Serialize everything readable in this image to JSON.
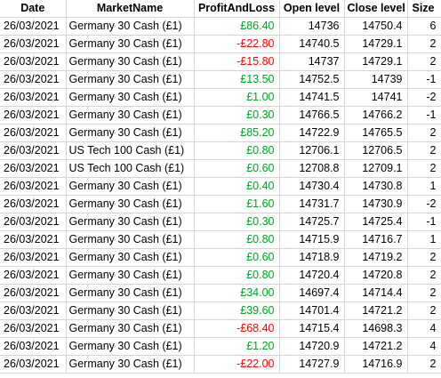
{
  "sheet": {
    "headers": {
      "date": "Date",
      "market": "MarketName",
      "pnl": "ProfitAndLoss",
      "open": "Open level",
      "close": "Close level",
      "size": "Size"
    },
    "colors": {
      "positive": "#00a023",
      "negative": "#ff0000",
      "grid": "#d4d4d4"
    },
    "rows": [
      {
        "date": "26/03/2021",
        "market": "Germany 30 Cash (£1)",
        "pnl": "£86.40",
        "pnl_sign": "pos",
        "open": "14736",
        "close": "14750.4",
        "size": "6"
      },
      {
        "date": "26/03/2021",
        "market": "Germany 30 Cash (£1)",
        "pnl": "-£22.80",
        "pnl_sign": "neg",
        "open": "14740.5",
        "close": "14729.1",
        "size": "2"
      },
      {
        "date": "26/03/2021",
        "market": "Germany 30 Cash (£1)",
        "pnl": "-£15.80",
        "pnl_sign": "neg",
        "open": "14737",
        "close": "14729.1",
        "size": "2"
      },
      {
        "date": "26/03/2021",
        "market": "Germany 30 Cash (£1)",
        "pnl": "£13.50",
        "pnl_sign": "pos",
        "open": "14752.5",
        "close": "14739",
        "size": "-1"
      },
      {
        "date": "26/03/2021",
        "market": "Germany 30 Cash (£1)",
        "pnl": "£1.00",
        "pnl_sign": "pos",
        "open": "14741.5",
        "close": "14741",
        "size": "-2"
      },
      {
        "date": "26/03/2021",
        "market": "Germany 30 Cash (£1)",
        "pnl": "£0.30",
        "pnl_sign": "pos",
        "open": "14766.5",
        "close": "14766.2",
        "size": "-1"
      },
      {
        "date": "26/03/2021",
        "market": "Germany 30 Cash (£1)",
        "pnl": "£85.20",
        "pnl_sign": "pos",
        "open": "14722.9",
        "close": "14765.5",
        "size": "2"
      },
      {
        "date": "26/03/2021",
        "market": "US Tech 100 Cash (£1)",
        "pnl": "£0.80",
        "pnl_sign": "pos",
        "open": "12706.1",
        "close": "12706.5",
        "size": "2"
      },
      {
        "date": "26/03/2021",
        "market": "US Tech 100 Cash (£1)",
        "pnl": "£0.60",
        "pnl_sign": "pos",
        "open": "12708.8",
        "close": "12709.1",
        "size": "2"
      },
      {
        "date": "26/03/2021",
        "market": "Germany 30 Cash (£1)",
        "pnl": "£0.40",
        "pnl_sign": "pos",
        "open": "14730.4",
        "close": "14730.8",
        "size": "1"
      },
      {
        "date": "26/03/2021",
        "market": "Germany 30 Cash (£1)",
        "pnl": "£1.60",
        "pnl_sign": "pos",
        "open": "14731.7",
        "close": "14730.9",
        "size": "-2"
      },
      {
        "date": "26/03/2021",
        "market": "Germany 30 Cash (£1)",
        "pnl": "£0.30",
        "pnl_sign": "pos",
        "open": "14725.7",
        "close": "14725.4",
        "size": "-1"
      },
      {
        "date": "26/03/2021",
        "market": "Germany 30 Cash (£1)",
        "pnl": "£0.80",
        "pnl_sign": "pos",
        "open": "14715.9",
        "close": "14716.7",
        "size": "1"
      },
      {
        "date": "26/03/2021",
        "market": "Germany 30 Cash (£1)",
        "pnl": "£0.60",
        "pnl_sign": "pos",
        "open": "14718.9",
        "close": "14719.2",
        "size": "2"
      },
      {
        "date": "26/03/2021",
        "market": "Germany 30 Cash (£1)",
        "pnl": "£0.80",
        "pnl_sign": "pos",
        "open": "14720.4",
        "close": "14720.8",
        "size": "2"
      },
      {
        "date": "26/03/2021",
        "market": "Germany 30 Cash (£1)",
        "pnl": "£34.00",
        "pnl_sign": "pos",
        "open": "14697.4",
        "close": "14714.4",
        "size": "2"
      },
      {
        "date": "26/03/2021",
        "market": "Germany 30 Cash (£1)",
        "pnl": "£39.60",
        "pnl_sign": "pos",
        "open": "14701.4",
        "close": "14721.2",
        "size": "2"
      },
      {
        "date": "26/03/2021",
        "market": "Germany 30 Cash (£1)",
        "pnl": "-£68.40",
        "pnl_sign": "neg",
        "open": "14715.4",
        "close": "14698.3",
        "size": "4"
      },
      {
        "date": "26/03/2021",
        "market": "Germany 30 Cash (£1)",
        "pnl": "£1.20",
        "pnl_sign": "pos",
        "open": "14720.9",
        "close": "14721.2",
        "size": "4"
      },
      {
        "date": "26/03/2021",
        "market": "Germany 30 Cash (£1)",
        "pnl": "-£22.00",
        "pnl_sign": "neg",
        "open": "14727.9",
        "close": "14716.9",
        "size": "2"
      }
    ]
  }
}
